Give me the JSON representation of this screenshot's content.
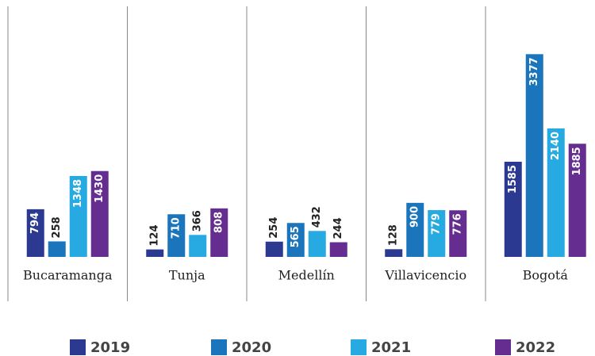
{
  "chart_data": {
    "type": "bar",
    "categories": [
      "Bucaramanga",
      "Tunja",
      "Medellín",
      "Villavicencio",
      "Bogotá"
    ],
    "series": [
      {
        "name": "2019",
        "color": "#2b3990",
        "values": [
          794,
          124,
          254,
          128,
          1585
        ]
      },
      {
        "name": "2020",
        "color": "#1b75bc",
        "values": [
          258,
          710,
          565,
          900,
          3377
        ]
      },
      {
        "name": "2021",
        "color": "#27aae1",
        "values": [
          1348,
          366,
          432,
          779,
          2140
        ]
      },
      {
        "name": "2022",
        "color": "#662d91",
        "values": [
          1430,
          808,
          244,
          776,
          1885
        ]
      }
    ],
    "ylim": [
      0,
      3500
    ]
  }
}
